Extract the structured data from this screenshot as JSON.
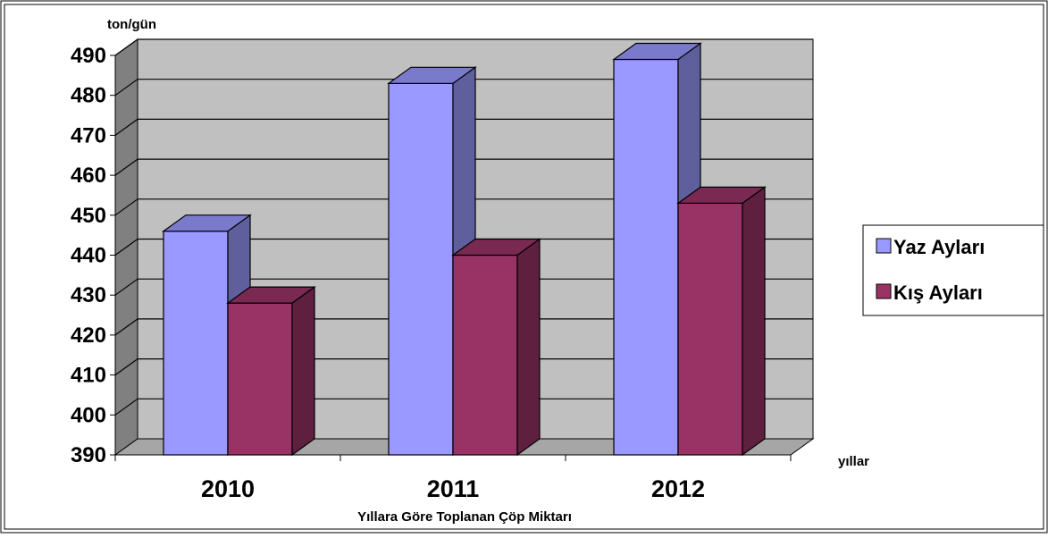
{
  "chart_data": {
    "type": "bar",
    "style": "3d-clustered-column",
    "title": "Yıllara Göre Toplanan Çöp Miktarı",
    "ylabel": "ton/gün",
    "xlabel": "yıllar",
    "categories": [
      "2010",
      "2011",
      "2012"
    ],
    "series": [
      {
        "name": "Yaz Ayları",
        "color": "#9999FF",
        "values": [
          446,
          483,
          489
        ]
      },
      {
        "name": "Kış Ayları",
        "color": "#993366",
        "values": [
          428,
          440,
          453
        ]
      }
    ],
    "ylim": [
      390,
      490
    ],
    "yticks": [
      390,
      400,
      410,
      420,
      430,
      440,
      450,
      460,
      470,
      480,
      490
    ],
    "grid": true,
    "legend": "right"
  }
}
